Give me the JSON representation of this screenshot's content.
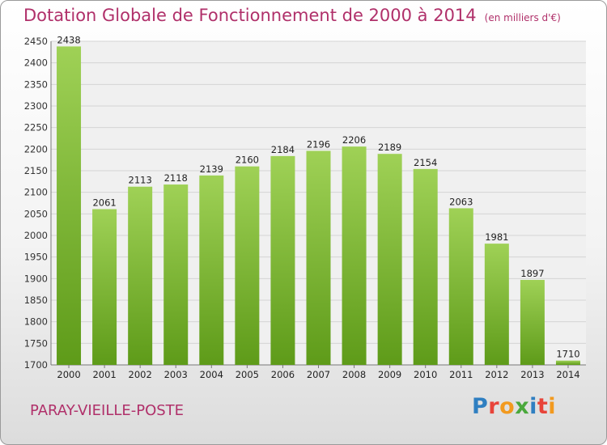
{
  "header": {
    "title": "Dotation Globale de Fonctionnement de 2000 à 2014",
    "subtitle": "(en milliers d'€)"
  },
  "footer": {
    "commune": "PARAY-VIEILLE-POSTE",
    "logo_letters": [
      "P",
      "r",
      "o",
      "x",
      "i",
      "t",
      "i"
    ],
    "logo_colors": [
      "#2f7fc1",
      "#e8443a",
      "#f29a1f",
      "#4aa83c",
      "#2f7fc1",
      "#e8443a",
      "#f29a1f"
    ]
  },
  "chart_data": {
    "type": "bar",
    "title": "Dotation Globale de Fonctionnement de 2000 à 2014",
    "subtitle": "(en milliers d'€)",
    "categories": [
      "2000",
      "2001",
      "2002",
      "2003",
      "2004",
      "2005",
      "2006",
      "2007",
      "2008",
      "2009",
      "2010",
      "2011",
      "2012",
      "2013",
      "2014"
    ],
    "values": [
      2438,
      2061,
      2113,
      2118,
      2139,
      2160,
      2184,
      2196,
      2206,
      2189,
      2154,
      2063,
      1981,
      1897,
      1710
    ],
    "ylim": [
      1700,
      2450
    ],
    "yticks": [
      1700,
      1750,
      1800,
      1850,
      1900,
      1950,
      2000,
      2050,
      2100,
      2150,
      2200,
      2250,
      2300,
      2350,
      2400,
      2450
    ],
    "grid": true,
    "colors": {
      "bar_light": "#9fd156",
      "bar_dark": "#5e9b19",
      "grid": "#d4d4d4"
    }
  }
}
